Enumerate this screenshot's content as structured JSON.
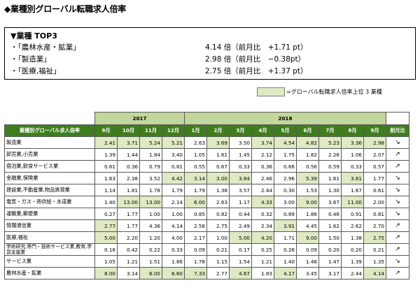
{
  "title": "◆業種別グローバル転職求人倍率",
  "top3": {
    "header": "▼業種 TOP3",
    "rows": [
      {
        "name": "・「農林水産・鉱業」",
        "value": "4.14 倍（前月比　+1.71 pt）"
      },
      {
        "name": "・「製造業」",
        "value": "2.98 倍（前月比　−0.38pt）"
      },
      {
        "name": "・「医療,福祉」",
        "value": "2.75 倍（前月比　+1.37 pt）"
      }
    ]
  },
  "legend": {
    "label": "=グローバル転職求人倍率上位 3 業種",
    "color": "#dfe9c3"
  },
  "table": {
    "years": [
      {
        "label": "2017",
        "span": 4
      },
      {
        "label": "2018",
        "span": 9
      }
    ],
    "corner": "業種別グローバル求人倍率",
    "months": [
      "9月",
      "10月",
      "11月",
      "12月",
      "1月",
      "2月",
      "3月",
      "4月",
      "5月",
      "6月",
      "7月",
      "8月",
      "9月"
    ],
    "change_header": "前月比",
    "rows": [
      {
        "name": "製造業",
        "values": [
          "2.41",
          "3.71",
          "5.24",
          "5.21",
          "2.63",
          "3.69",
          "3.50",
          "3.74",
          "4.54",
          "4.82",
          "5.23",
          "3.36",
          "2.98"
        ],
        "arrow": "↘",
        "hl": [
          true,
          true,
          true,
          true,
          false,
          true,
          false,
          true,
          true,
          true,
          true,
          true,
          true
        ]
      },
      {
        "name": "卸売業,小売業",
        "values": [
          "1.39",
          "1.44",
          "1.84",
          "3.40",
          "1.05",
          "1.61",
          "1.45",
          "2.12",
          "1.75",
          "1.82",
          "2.26",
          "1.06",
          "2.07"
        ],
        "arrow": "↗",
        "hl": [
          false,
          false,
          false,
          false,
          false,
          false,
          false,
          false,
          false,
          false,
          false,
          false,
          false
        ]
      },
      {
        "name": "宿泊業,飲食サービス業",
        "values": [
          "0.61",
          "0.36",
          "0.79",
          "0.81",
          "0.55",
          "0.67",
          "0.33",
          "0.36",
          "0.66",
          "0.56",
          "0.59",
          "0.33",
          "0.57"
        ],
        "arrow": "↗",
        "hl": [
          false,
          false,
          false,
          false,
          false,
          false,
          false,
          false,
          false,
          false,
          false,
          false,
          false
        ]
      },
      {
        "name": "金融業,保険業",
        "values": [
          "1.63",
          "2.38",
          "3.52",
          "4.42",
          "3.14",
          "3.00",
          "3.84",
          "2.46",
          "2.96",
          "5.39",
          "1.61",
          "3.61",
          "1.77"
        ],
        "arrow": "↘",
        "hl": [
          false,
          false,
          false,
          true,
          true,
          true,
          true,
          false,
          false,
          true,
          false,
          true,
          false
        ]
      },
      {
        "name": "建設業,不動産業,物品賃貸業",
        "values": [
          "1.14",
          "1.81",
          "1.78",
          "1.79",
          "1.79",
          "1.38",
          "3.57",
          "2.44",
          "0.30",
          "1.53",
          "1.30",
          "1.67",
          "0.61"
        ],
        "arrow": "↘",
        "hl": [
          false,
          false,
          false,
          false,
          false,
          false,
          false,
          false,
          false,
          false,
          false,
          false,
          false
        ]
      },
      {
        "name": "電気・ガス・熱供給・水道業",
        "values": [
          "1.40",
          "13.00",
          "13.00",
          "2.14",
          "6.00",
          "2.63",
          "1.17",
          "4.33",
          "3.00",
          "9.00",
          "3.67",
          "11.00",
          "2.00"
        ],
        "arrow": "↘",
        "hl": [
          false,
          true,
          true,
          false,
          true,
          false,
          false,
          true,
          false,
          true,
          false,
          true,
          false
        ]
      },
      {
        "name": "運輸業,郵便業",
        "values": [
          "0.27",
          "1.77",
          "1.00",
          "1.00",
          "0.85",
          "0.82",
          "0.44",
          "0.32",
          "0.89",
          "1.86",
          "0.46",
          "0.91",
          "0.81"
        ],
        "arrow": "↘",
        "hl": [
          false,
          false,
          false,
          false,
          false,
          false,
          false,
          false,
          false,
          false,
          false,
          false,
          false
        ]
      },
      {
        "name": "情報通信業",
        "values": [
          "2.77",
          "1.77",
          "4.36",
          "4.14",
          "2.58",
          "2.75",
          "2.49",
          "2.34",
          "3.91",
          "4.45",
          "1.62",
          "2.62",
          "2.70"
        ],
        "arrow": "↗",
        "hl": [
          true,
          false,
          false,
          false,
          false,
          false,
          false,
          false,
          true,
          false,
          false,
          false,
          false
        ]
      },
      {
        "name": "医療,福祉",
        "values": [
          "5.00",
          "2.20",
          "1.20",
          "4.00",
          "2.17",
          "1.00",
          "5.00",
          "4.20",
          "1.71",
          "9.00",
          "1.50",
          "1.38",
          "2.75"
        ],
        "arrow": "↗",
        "hl": [
          true,
          false,
          false,
          false,
          false,
          false,
          true,
          true,
          false,
          true,
          false,
          false,
          true
        ]
      },
      {
        "name": "学術研究,専門・技術サービス業,教育,学習支援業",
        "values": [
          "0.16",
          "0.42",
          "0.22",
          "0.33",
          "0.09",
          "0.21",
          "0.17",
          "0.25",
          "0.26",
          "0.09",
          "0.20",
          "0.20",
          "0.21"
        ],
        "arrow": "↗",
        "hl": [
          false,
          false,
          false,
          false,
          false,
          false,
          false,
          false,
          false,
          false,
          false,
          false,
          false
        ]
      },
      {
        "name": "サービス業",
        "values": [
          "1.05",
          "1.21",
          "1.51",
          "1.86",
          "1.78",
          "1.15",
          "1.54",
          "1.21",
          "1.40",
          "1.46",
          "1.47",
          "1.39",
          "1.35"
        ],
        "arrow": "↘",
        "hl": [
          false,
          false,
          false,
          false,
          false,
          false,
          false,
          false,
          false,
          false,
          false,
          false,
          false
        ]
      },
      {
        "name": "農林水産・鉱業",
        "values": [
          "8.00",
          "3.14",
          "6.00",
          "8.60",
          "7.33",
          "2.77",
          "4.67",
          "1.83",
          "4.17",
          "3.45",
          "3.17",
          "2.44",
          "4.14"
        ],
        "arrow": "↗",
        "hl": [
          true,
          false,
          true,
          true,
          true,
          false,
          true,
          false,
          true,
          false,
          false,
          false,
          true
        ]
      }
    ]
  }
}
